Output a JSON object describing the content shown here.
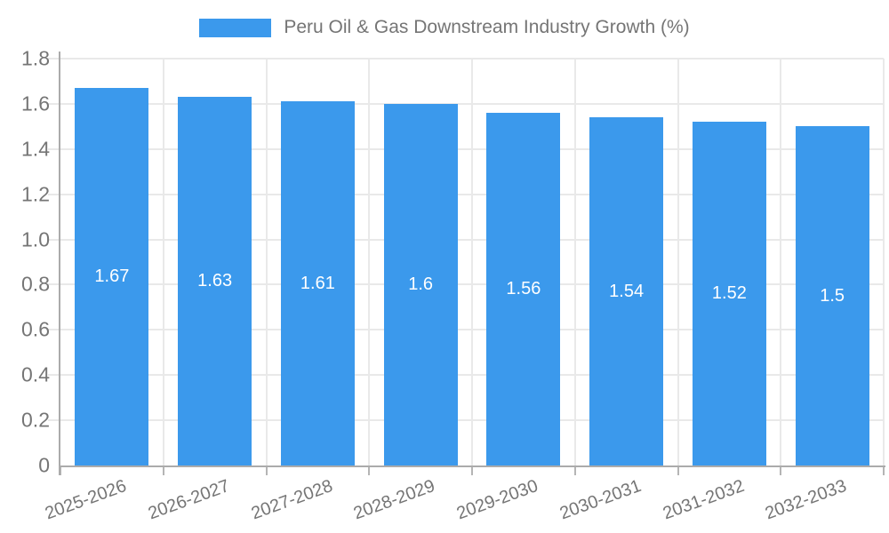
{
  "chart_data": {
    "type": "bar",
    "title": "Peru Oil & Gas Downstream Industry Growth (%)",
    "legend_position": "top-center",
    "categories": [
      "2025-2026",
      "2026-2027",
      "2027-2028",
      "2028-2029",
      "2029-2030",
      "2030-2031",
      "2031-2032",
      "2032-2033"
    ],
    "series": [
      {
        "name": "Peru Oil & Gas Downstream Industry Growth (%)",
        "values": [
          1.67,
          1.63,
          1.61,
          1.6,
          1.56,
          1.54,
          1.52,
          1.5
        ],
        "value_labels": [
          "1.67",
          "1.63",
          "1.61",
          "1.6",
          "1.56",
          "1.54",
          "1.52",
          "1.5"
        ]
      }
    ],
    "xlabel": "",
    "ylabel": "",
    "ylim": [
      0,
      1.8
    ],
    "ytick_values": [
      0,
      0.2,
      0.4,
      0.6,
      0.8,
      1.0,
      1.2,
      1.4,
      1.6,
      1.8
    ],
    "ytick_labels": [
      "0",
      "0.2",
      "0.4",
      "0.6",
      "0.8",
      "1.0",
      "1.2",
      "1.4",
      "1.6",
      "1.8"
    ],
    "grid": "horizontal gridlines at each 0.2 step, vertical gridlines at category boundaries",
    "value_labels_position": "centered inside bars",
    "colors": {
      "bar": "#3b99ec",
      "value_label": "#ffffff",
      "text": "#757575",
      "gridline": "#e9e9e9",
      "axis_line": "#ababab",
      "tick": "#b5b5b5",
      "background": "#ffffff"
    }
  }
}
